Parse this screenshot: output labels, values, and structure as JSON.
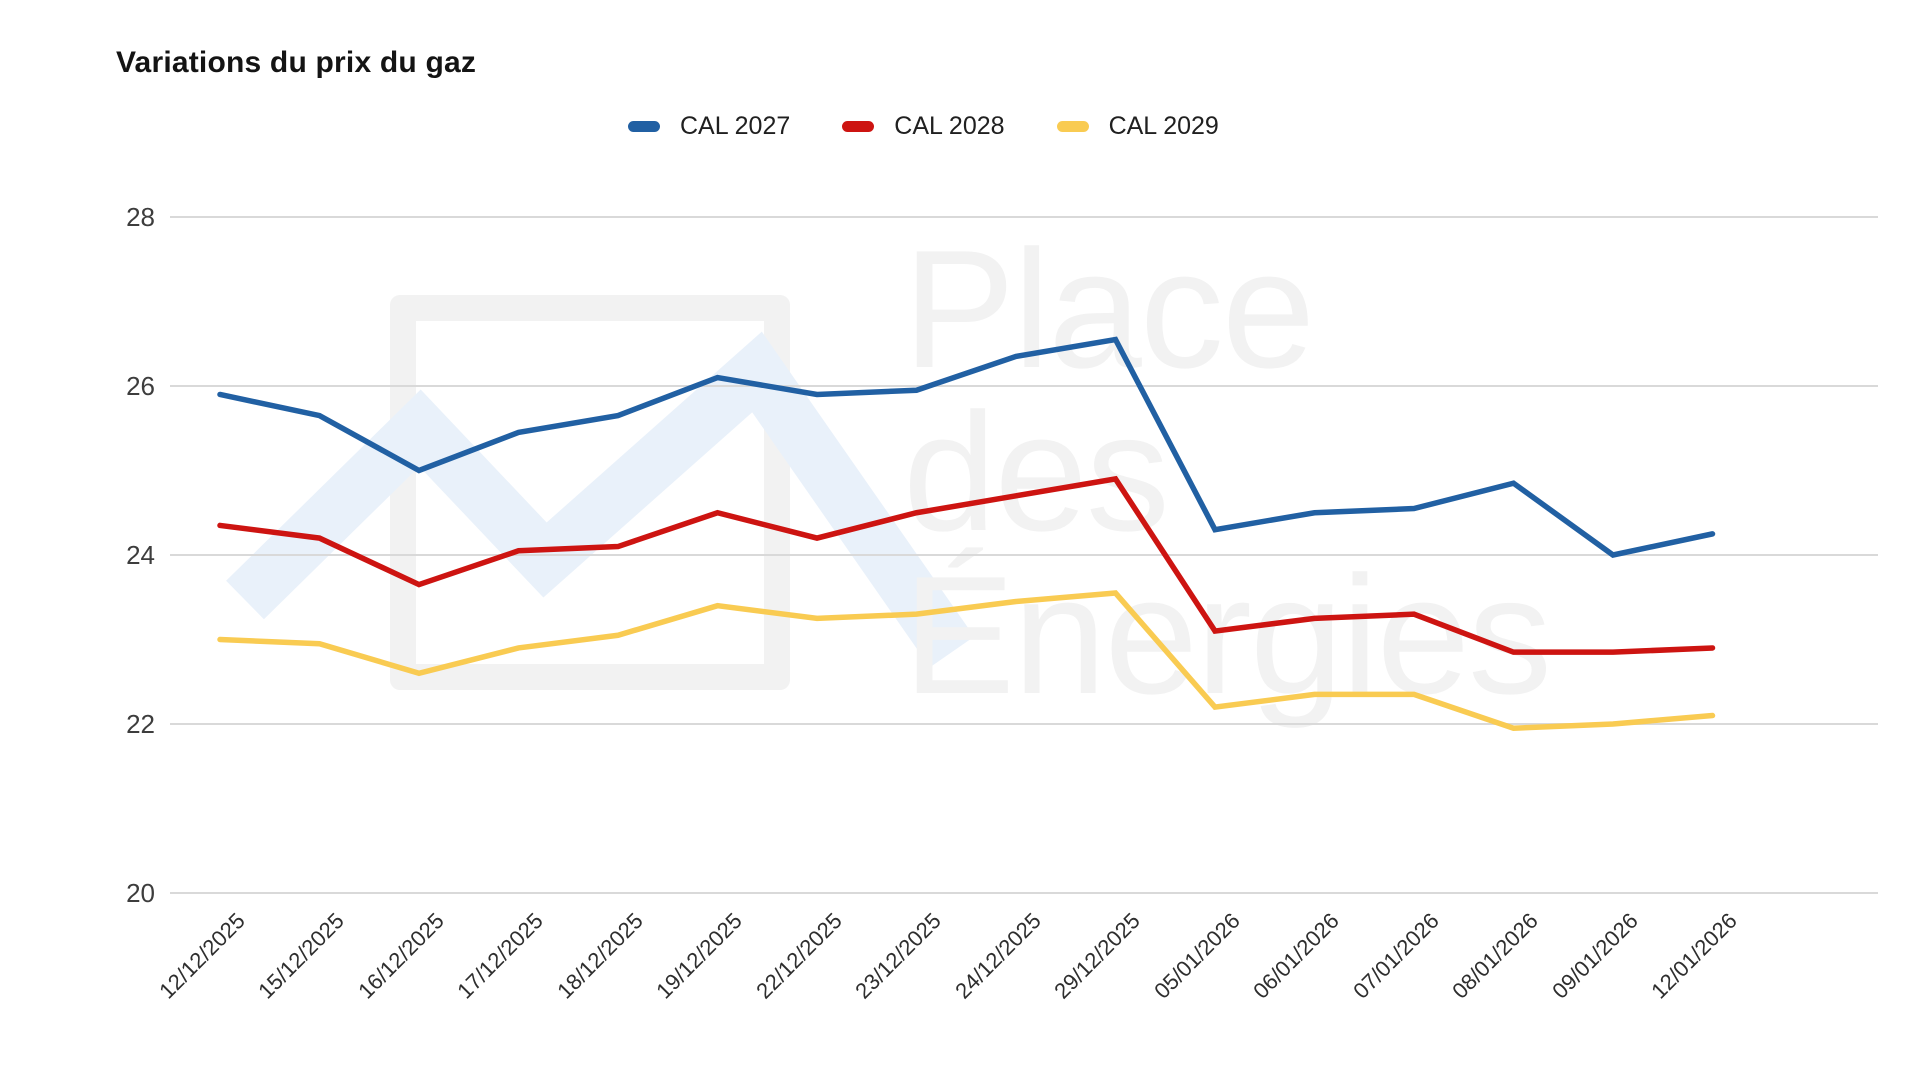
{
  "title": "Variations du prix du gaz",
  "watermark": {
    "lines": [
      "Place",
      "des",
      "Énergies"
    ],
    "frame_color": "#f2f2f2",
    "zigzag_color": "#e9f1fa",
    "text_color": "#f2f2f2"
  },
  "chart_data": {
    "type": "line",
    "title": "Variations du prix du gaz",
    "xlabel": "",
    "ylabel": "",
    "ylim": [
      20,
      28
    ],
    "yticks": [
      28,
      26,
      24,
      22,
      20
    ],
    "grid": "horizontal",
    "gridline_color": "#d9d9d9",
    "legend_position": "top",
    "x_labels": [
      "12/12/2025",
      "15/12/2025",
      "16/12/2025",
      "17/12/2025",
      "18/12/2025",
      "19/12/2025",
      "22/12/2025",
      "23/12/2025",
      "24/12/2025",
      "29/12/2025",
      "05/01/2026",
      "06/01/2026",
      "07/01/2026",
      "08/01/2026",
      "09/01/2026",
      "12/01/2026"
    ],
    "series": [
      {
        "name": "CAL 2027",
        "color": "#2160a3",
        "values": [
          25.9,
          25.65,
          25.0,
          25.45,
          25.65,
          26.1,
          25.9,
          25.95,
          26.35,
          26.55,
          24.3,
          24.5,
          24.55,
          24.85,
          24.0,
          24.25
        ]
      },
      {
        "name": "CAL 2028",
        "color": "#cd1411",
        "values": [
          24.35,
          24.2,
          23.65,
          24.05,
          24.1,
          24.5,
          24.2,
          24.5,
          24.7,
          24.9,
          23.1,
          23.25,
          23.3,
          22.85,
          22.85,
          22.9
        ]
      },
      {
        "name": "CAL 2029",
        "color": "#f9cb52",
        "values": [
          23.0,
          22.95,
          22.6,
          22.9,
          23.05,
          23.4,
          23.25,
          23.3,
          23.45,
          23.55,
          22.2,
          22.35,
          22.35,
          21.95,
          22.0,
          22.1
        ]
      }
    ]
  }
}
